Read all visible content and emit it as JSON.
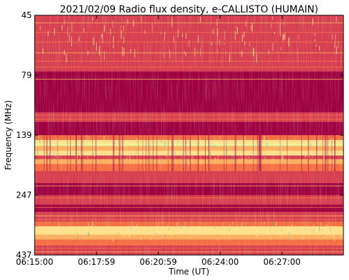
{
  "chart_data": {
    "type": "heatmap",
    "title": "2021/02/09  Radio flux density, e-CALLISTO (HUMAIN)",
    "xlabel": "Time (UT)",
    "ylabel": "Frequency (MHz)",
    "x_ticks": [
      "06:15:00",
      "06:17:59",
      "06:20:59",
      "06:24:00",
      "06:27:00"
    ],
    "y_ticks": [
      "45",
      "79",
      "139",
      "247",
      "437"
    ],
    "y_axis_direction": "top-to-bottom increasing frequency",
    "colormap": "Spectral (reversed)",
    "colors": {
      "low": "#9e0142",
      "mid_low": "#d53e4f",
      "mid": "#f46d43",
      "mid_high": "#fdae61",
      "high": "#fee08b",
      "peak": "#e6f598",
      "extreme": "#66c2a5"
    },
    "grid": false
  }
}
